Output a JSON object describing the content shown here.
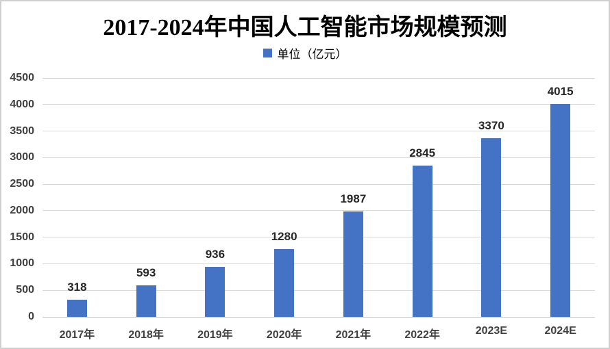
{
  "page": {
    "background": "#ffffff",
    "border_color": "#cfcfcf"
  },
  "chart_data": {
    "type": "bar",
    "title": "2017-2024年中国人工智能市场规模预测",
    "legend": {
      "label": "单位（亿元）",
      "swatch_color": "#4472C4",
      "position": "top"
    },
    "categories": [
      "2017年",
      "2018年",
      "2019年",
      "2020年",
      "2021年",
      "2022年",
      "2023E",
      "2024E"
    ],
    "values": [
      318,
      593,
      936,
      1280,
      1987,
      2845,
      3370,
      4015
    ],
    "xlabel": "",
    "ylabel": "",
    "ylim": [
      0,
      4500
    ],
    "ytick_step": 500,
    "yticks": [
      0,
      500,
      1000,
      1500,
      2000,
      2500,
      3000,
      3500,
      4000,
      4500
    ],
    "grid": true,
    "data_labels": true,
    "bar_color": "#4472C4",
    "gridline_color": "#d9d9d9",
    "axis_label_color": "#404040",
    "data_label_color": "#262626"
  }
}
